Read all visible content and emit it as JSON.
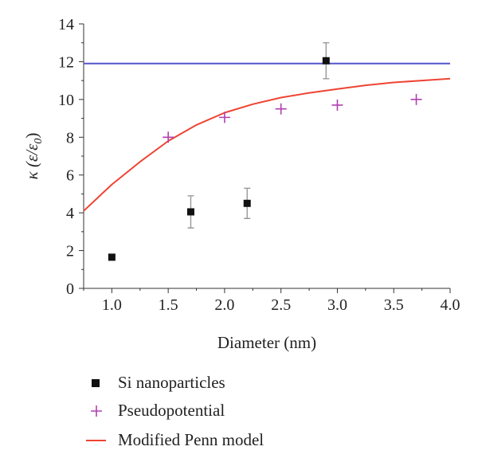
{
  "chart_data": {
    "type": "scatter",
    "xlabel": "Diameter (nm)",
    "ylabel": "κ (ε/ε",
    "ylabel_sub": "0",
    "ylabel_close": ")",
    "xlim": [
      0.75,
      4.0
    ],
    "ylim": [
      0,
      14
    ],
    "x_ticks": [
      "1.0",
      "1.5",
      "2.0",
      "2.5",
      "3.0",
      "3.5",
      "4.0"
    ],
    "x_tick_values": [
      1.0,
      1.5,
      2.0,
      2.5,
      3.0,
      3.5,
      4.0
    ],
    "y_ticks": [
      "0",
      "2",
      "4",
      "6",
      "8",
      "10",
      "12",
      "14"
    ],
    "y_tick_values": [
      0,
      2,
      4,
      6,
      8,
      10,
      12,
      14
    ],
    "grid": false,
    "legend_position": "bottom",
    "bulk_reference_line": {
      "y": 11.9,
      "color": "#5555cc"
    },
    "series": [
      {
        "name": "Si nanoparticles",
        "marker": "square",
        "color": "#111111",
        "points": [
          {
            "x": 1.0,
            "y": 1.65,
            "err": 0
          },
          {
            "x": 1.7,
            "y": 4.05,
            "err": 0.85
          },
          {
            "x": 2.2,
            "y": 4.5,
            "err": 0.8
          },
          {
            "x": 2.9,
            "y": 12.05,
            "err": 0.95
          }
        ]
      },
      {
        "name": "Pseudopotential",
        "marker": "plus",
        "color": "#b040b0",
        "points": [
          {
            "x": 1.5,
            "y": 8.0
          },
          {
            "x": 2.0,
            "y": 9.05
          },
          {
            "x": 2.5,
            "y": 9.5
          },
          {
            "x": 3.0,
            "y": 9.7
          },
          {
            "x": 3.7,
            "y": 10.0
          }
        ]
      },
      {
        "name": "Modified Penn model",
        "marker": "line",
        "color": "#ee4433",
        "x": [
          0.75,
          1.0,
          1.25,
          1.5,
          1.75,
          2.0,
          2.25,
          2.5,
          2.75,
          3.0,
          3.25,
          3.5,
          3.75,
          4.0
        ],
        "y": [
          4.1,
          5.5,
          6.7,
          7.8,
          8.65,
          9.3,
          9.75,
          10.1,
          10.35,
          10.55,
          10.75,
          10.9,
          11.0,
          11.1
        ]
      }
    ]
  }
}
